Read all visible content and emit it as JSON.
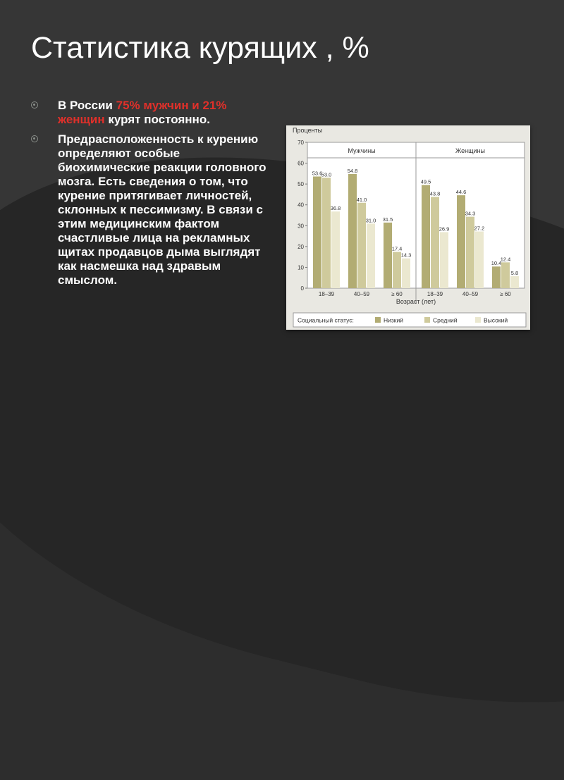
{
  "slide": {
    "title": "Статистика курящих , %",
    "bullet1": {
      "part1": "В России ",
      "highlight": "75% мужчин и 21% женщин",
      "part2": " курят постоянно."
    },
    "bullet2": "Предрасположенность к курению определяют особые биохимические реакции головного мозга. Есть сведения о том, что курение притягивает личностей, склонных к пессимизму. В связи с этим медицинским фактом счастливые лица на рекламных щитах продавцов дыма выглядят как насмешка над здравым смыслом.",
    "highlight_color": "#e0302a"
  },
  "chart_data": {
    "type": "bar",
    "ylabel": "Проценты",
    "xlabel": "Возраст (лет)",
    "ylim": [
      0,
      70
    ],
    "yticks": [
      0,
      10,
      20,
      30,
      40,
      50,
      60,
      70
    ],
    "grid": false,
    "groups": [
      {
        "label": "Мужчины",
        "categories": [
          "18–39",
          "40–59",
          "≥ 60"
        ],
        "series": [
          {
            "name": "Низкий",
            "values": [
              53.6,
              54.8,
              31.5
            ]
          },
          {
            "name": "Средний",
            "values": [
              53.0,
              41.0,
              17.4
            ]
          },
          {
            "name": "Высокий",
            "values": [
              36.8,
              31.0,
              14.3
            ]
          }
        ]
      },
      {
        "label": "Женщины",
        "categories": [
          "18–39",
          "40–59",
          "≥ 60"
        ],
        "series": [
          {
            "name": "Низкий",
            "values": [
              49.5,
              44.6,
              10.4
            ]
          },
          {
            "name": "Средний",
            "values": [
              43.8,
              34.3,
              12.4
            ]
          },
          {
            "name": "Высокий",
            "values": [
              26.9,
              27.2,
              5.8
            ]
          }
        ]
      }
    ],
    "legend": {
      "title": "Социальный статус:",
      "placement": "bottom",
      "items": [
        "Низкий",
        "Средний",
        "Высокий"
      ]
    },
    "colors": {
      "Низкий": "#b2ac73",
      "Средний": "#cfca9c",
      "Высокий": "#ebe8d0"
    }
  }
}
